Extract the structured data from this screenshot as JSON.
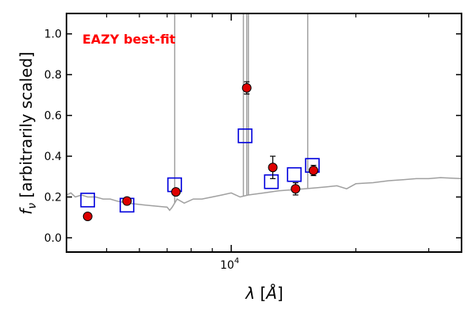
{
  "chart_data": {
    "type": "scatter",
    "xscale": "log",
    "xlim": [
      4000,
      36000
    ],
    "ylim": [
      -0.07,
      1.1
    ],
    "xlabel": "λ [Å]",
    "ylabel": "f_ν [arbitrarily scaled]",
    "x_major_ticks": [
      {
        "value": 10000,
        "label": "10^4"
      }
    ],
    "x_minor_ticks": [
      5000,
      6000,
      7000,
      8000,
      9000,
      20000,
      30000
    ],
    "y_ticks": [
      0.0,
      0.2,
      0.4,
      0.6,
      0.8,
      1.0
    ],
    "y_tick_labels": [
      "0.0",
      "0.2",
      "0.4",
      "0.6",
      "0.8",
      "1.0"
    ],
    "annotation": {
      "text": "EAZY best-fit",
      "color": "#ff0000",
      "position": "top-left"
    },
    "grid": false,
    "series": [
      {
        "role": "best-fit template",
        "kind": "line",
        "color": "#a0a0a0",
        "points": [
          [
            4000,
            0.21
          ],
          [
            4100,
            0.22
          ],
          [
            4200,
            0.2
          ],
          [
            4350,
            0.21
          ],
          [
            4500,
            0.2
          ],
          [
            4700,
            0.2
          ],
          [
            4900,
            0.19
          ],
          [
            5100,
            0.19
          ],
          [
            5300,
            0.18
          ],
          [
            5600,
            0.17
          ],
          [
            5900,
            0.165
          ],
          [
            6200,
            0.16
          ],
          [
            6600,
            0.155
          ],
          [
            7000,
            0.15
          ],
          [
            7100,
            0.135
          ],
          [
            7200,
            0.15
          ],
          [
            7400,
            0.19
          ],
          [
            7700,
            0.17
          ],
          [
            8100,
            0.19
          ],
          [
            8500,
            0.19
          ],
          [
            9000,
            0.2
          ],
          [
            9500,
            0.21
          ],
          [
            10000,
            0.22
          ],
          [
            10500,
            0.2
          ],
          [
            11000,
            0.21
          ],
          [
            12000,
            0.22
          ],
          [
            13000,
            0.23
          ],
          [
            14000,
            0.235
          ],
          [
            15000,
            0.24
          ],
          [
            16000,
            0.245
          ],
          [
            17000,
            0.25
          ],
          [
            18000,
            0.255
          ],
          [
            19000,
            0.24
          ],
          [
            20000,
            0.265
          ],
          [
            22000,
            0.27
          ],
          [
            24000,
            0.28
          ],
          [
            26000,
            0.285
          ],
          [
            28000,
            0.29
          ],
          [
            30000,
            0.29
          ],
          [
            32000,
            0.295
          ],
          [
            36000,
            0.29
          ]
        ],
        "emission_lines": [
          {
            "x": 7300,
            "peak": 1.15
          },
          {
            "x": 10700,
            "peak": 1.15
          },
          {
            "x": 10900,
            "peak": 1.15
          },
          {
            "x": 11000,
            "peak": 1.15
          },
          {
            "x": 15300,
            "peak": 1.15
          }
        ]
      },
      {
        "role": "model photometry",
        "kind": "square-marker",
        "color": "#0000dd",
        "points": [
          [
            4500,
            0.185
          ],
          [
            5600,
            0.16
          ],
          [
            7300,
            0.26
          ],
          [
            10800,
            0.5
          ],
          [
            12500,
            0.275
          ],
          [
            14200,
            0.31
          ],
          [
            15700,
            0.355
          ]
        ]
      },
      {
        "role": "observed photometry",
        "kind": "circle-marker-with-error",
        "color": "#dd0000",
        "points": [
          {
            "x": 4500,
            "y": 0.105,
            "err": 0.012
          },
          {
            "x": 5600,
            "y": 0.18,
            "err": 0.012
          },
          {
            "x": 7350,
            "y": 0.225,
            "err": 0.015
          },
          {
            "x": 10900,
            "y": 0.735,
            "err": 0.03
          },
          {
            "x": 12600,
            "y": 0.345,
            "err": 0.055
          },
          {
            "x": 14300,
            "y": 0.24,
            "err": 0.03
          },
          {
            "x": 15800,
            "y": 0.33,
            "err": 0.025
          }
        ]
      }
    ]
  }
}
